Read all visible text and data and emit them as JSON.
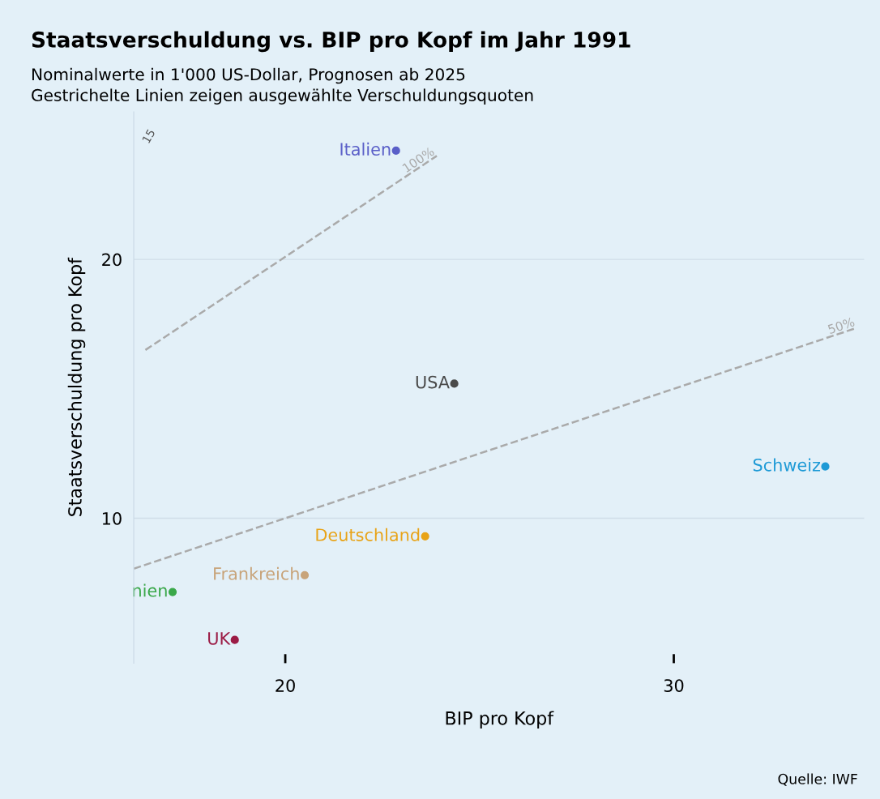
{
  "chart_data": {
    "type": "scatter",
    "title": "Staatsverschuldung vs. BIP pro Kopf im Jahr 1991",
    "subtitle": "Nominalwerte in 1'000 US-Dollar, Prognosen ab 2025\nGestrichelte Linien zeigen ausgewählte Verschuldungsquoten",
    "xlabel": "BIP pro Kopf",
    "ylabel": "Staatsverschuldung pro Kopf",
    "xlim": [
      16.1,
      34.9
    ],
    "ylim": [
      4.4,
      25.7
    ],
    "xticks": [
      20,
      30
    ],
    "yticks": [
      10,
      20
    ],
    "grid": "y",
    "legend": false,
    "marker": "circle",
    "series": [
      {
        "name": "100%",
        "type": "line",
        "marker": "none",
        "line_style": "dashed",
        "color": "#aaaaaa",
        "x": [
          16.4,
          23.9
        ],
        "values": [
          16.5,
          24.0
        ]
      },
      {
        "name": "50%",
        "type": "line",
        "marker": "none",
        "line_style": "dashed",
        "color": "#aaaaaa",
        "x": [
          16.1,
          34.7
        ],
        "values": [
          8.05,
          17.35
        ]
      },
      {
        "name": "Italien",
        "color": "#5a5fc8",
        "x": [
          22.85
        ],
        "values": [
          24.2
        ]
      },
      {
        "name": "USA",
        "color": "#4a4a4a",
        "x": [
          24.35
        ],
        "values": [
          15.2
        ]
      },
      {
        "name": "Schweiz",
        "color": "#1e9ad6",
        "x": [
          33.9
        ],
        "values": [
          12.0
        ]
      },
      {
        "name": "Deutschland",
        "color": "#e8a317",
        "x": [
          23.6
        ],
        "values": [
          9.3
        ]
      },
      {
        "name": "Frankreich",
        "color": "#c8a47a",
        "x": [
          20.5
        ],
        "values": [
          7.8
        ]
      },
      {
        "name": "nien",
        "color": "#3aa84a",
        "x": [
          17.1
        ],
        "values": [
          7.15
        ]
      },
      {
        "name": "UK",
        "color": "#9b1b45",
        "x": [
          18.7
        ],
        "values": [
          5.3
        ]
      }
    ],
    "annotations": [
      "15",
      "Quelle: IWF"
    ]
  }
}
